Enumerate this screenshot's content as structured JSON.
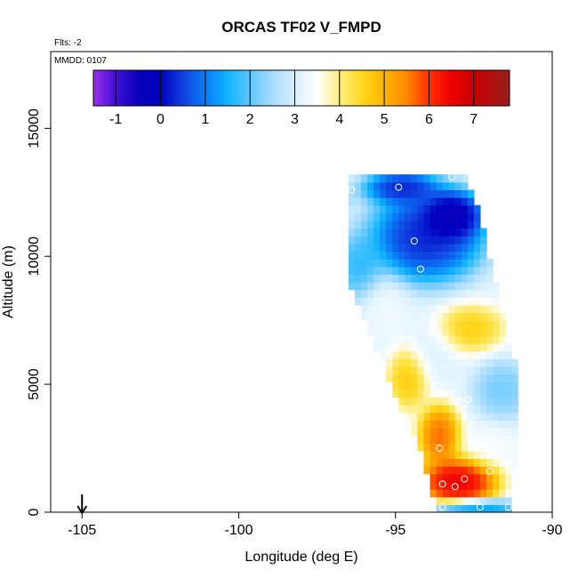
{
  "chart_data": {
    "type": "heatmap",
    "title": "ORCAS TF02 V_FMPD",
    "flights_note": "Flts: -2",
    "date_note": "MMDD: 0107",
    "xlabel": "Longitude (deg E)",
    "ylabel": "Altitude (m)",
    "xlim": [
      -106,
      -90
    ],
    "ylim": [
      0,
      18000
    ],
    "x_ticks": [
      -105,
      -100,
      -95,
      -90
    ],
    "x_tick_labels": [
      "-105",
      "-100",
      "-95",
      "-90"
    ],
    "y_ticks": [
      0,
      5000,
      10000,
      15000
    ],
    "y_tick_labels": [
      "0",
      "5000",
      "10000",
      "15000"
    ],
    "colorbar": {
      "range": [
        -1.5,
        7.8
      ],
      "ticks": [
        -1,
        0,
        1,
        2,
        3,
        4,
        5,
        6,
        7
      ],
      "tick_labels": [
        "-1",
        "0",
        "1",
        "2",
        "3",
        "4",
        "5",
        "6",
        "7"
      ],
      "stops": [
        {
          "value": -1.5,
          "color": "#9a30e8"
        },
        {
          "value": -1.0,
          "color": "#4010d8"
        },
        {
          "value": -0.5,
          "color": "#0a00b8"
        },
        {
          "value": 0.0,
          "color": "#0000c0"
        },
        {
          "value": 0.5,
          "color": "#1040e0"
        },
        {
          "value": 1.0,
          "color": "#0a7cf8"
        },
        {
          "value": 1.5,
          "color": "#10b4ff"
        },
        {
          "value": 2.0,
          "color": "#60c8ff"
        },
        {
          "value": 2.5,
          "color": "#a8dcff"
        },
        {
          "value": 3.0,
          "color": "#d8f0ff"
        },
        {
          "value": 3.5,
          "color": "#ffffff"
        },
        {
          "value": 4.0,
          "color": "#ffee80"
        },
        {
          "value": 4.5,
          "color": "#ffd820"
        },
        {
          "value": 5.0,
          "color": "#ffb400"
        },
        {
          "value": 5.5,
          "color": "#ff8800"
        },
        {
          "value": 6.0,
          "color": "#ff3000"
        },
        {
          "value": 6.5,
          "color": "#ee0000"
        },
        {
          "value": 7.0,
          "color": "#c80000"
        },
        {
          "value": 7.8,
          "color": "#9a2020"
        }
      ]
    },
    "field": {
      "lon_range": [
        -96.5,
        -90.8
      ],
      "alt_range": [
        0,
        13200
      ],
      "lon_step": 0.2,
      "alt_step": 300,
      "left_edge": [
        [
          0,
          -93.7
        ],
        [
          2500,
          -94.2
        ],
        [
          5000,
          -95.2
        ],
        [
          7500,
          -96.0
        ],
        [
          10000,
          -96.8
        ],
        [
          12500,
          -97.6
        ],
        [
          13200,
          -97.6
        ]
      ],
      "right_edge": [
        [
          0,
          -91.4
        ],
        [
          2500,
          -91.0
        ],
        [
          5000,
          -91.0
        ],
        [
          7500,
          -91.5
        ],
        [
          10000,
          -92.0
        ],
        [
          12500,
          -92.5
        ],
        [
          13200,
          -92.8
        ]
      ],
      "features": [
        {
          "lon": -93.0,
          "alt": 1200,
          "value": 7.3,
          "spread_lon": 0.9,
          "spread_alt": 700,
          "weight": 1.0
        },
        {
          "lon": -93.6,
          "alt": 3000,
          "value": 6.4,
          "spread_lon": 0.5,
          "spread_alt": 900,
          "weight": 0.8
        },
        {
          "lon": -94.6,
          "alt": 5200,
          "value": 5.2,
          "spread_lon": 0.5,
          "spread_alt": 900,
          "weight": 0.7
        },
        {
          "lon": -92.6,
          "alt": 7200,
          "value": 5.0,
          "spread_lon": 0.8,
          "spread_alt": 700,
          "weight": 0.8
        },
        {
          "lon": -91.6,
          "alt": 4800,
          "value": 1.8,
          "spread_lon": 0.7,
          "spread_alt": 900,
          "weight": 0.7
        },
        {
          "lon": -92.0,
          "alt": 2600,
          "value": 3.5,
          "spread_lon": 0.7,
          "spread_alt": 700,
          "weight": 0.6
        },
        {
          "lon": -93.8,
          "alt": 6200,
          "value": 3.0,
          "spread_lon": 0.6,
          "spread_alt": 1000,
          "weight": 0.5
        },
        {
          "lon": -95.3,
          "alt": 8200,
          "value": 3.4,
          "spread_lon": 0.6,
          "spread_alt": 900,
          "weight": 0.5
        },
        {
          "lon": -96.2,
          "alt": 9600,
          "value": 1.2,
          "spread_lon": 0.6,
          "spread_alt": 1000,
          "weight": 0.6
        },
        {
          "lon": -94.0,
          "alt": 10800,
          "value": -0.4,
          "spread_lon": 1.3,
          "spread_alt": 1300,
          "weight": 1.0
        },
        {
          "lon": -93.2,
          "alt": 11600,
          "value": -1.3,
          "spread_lon": 0.7,
          "spread_alt": 700,
          "weight": 0.9
        },
        {
          "lon": -94.8,
          "alt": 12700,
          "value": -0.5,
          "spread_lon": 0.9,
          "spread_alt": 500,
          "weight": 0.8
        },
        {
          "lon": -92.5,
          "alt": 200,
          "value": 0.6,
          "spread_lon": 1.0,
          "spread_alt": 250,
          "weight": 1.0
        },
        {
          "lon": -97.2,
          "alt": 12300,
          "value": 1.3,
          "spread_lon": 0.5,
          "spread_alt": 500,
          "weight": 0.7
        }
      ],
      "background_value": 3.2,
      "sample_points": [
        [
          -93.5,
          200
        ],
        [
          -92.3,
          200
        ],
        [
          -91.4,
          200
        ],
        [
          -93.5,
          1100
        ],
        [
          -93.1,
          1000
        ],
        [
          -92.8,
          1300
        ],
        [
          -92.0,
          1600
        ],
        [
          -91.1,
          1700
        ],
        [
          -93.6,
          2500
        ],
        [
          -92.7,
          4400
        ],
        [
          -90.9,
          4400
        ],
        [
          -91.1,
          6100
        ],
        [
          -93.9,
          7000
        ],
        [
          -91.5,
          7800
        ],
        [
          -94.2,
          9500
        ],
        [
          -94.4,
          10600
        ],
        [
          -91.9,
          10400
        ],
        [
          -96.4,
          12600
        ],
        [
          -94.9,
          12700
        ],
        [
          -93.2,
          13100
        ],
        [
          -92.3,
          12600
        ],
        [
          -97.7,
          12400
        ]
      ]
    },
    "marker": {
      "lon": -105,
      "label": "arrow"
    }
  }
}
